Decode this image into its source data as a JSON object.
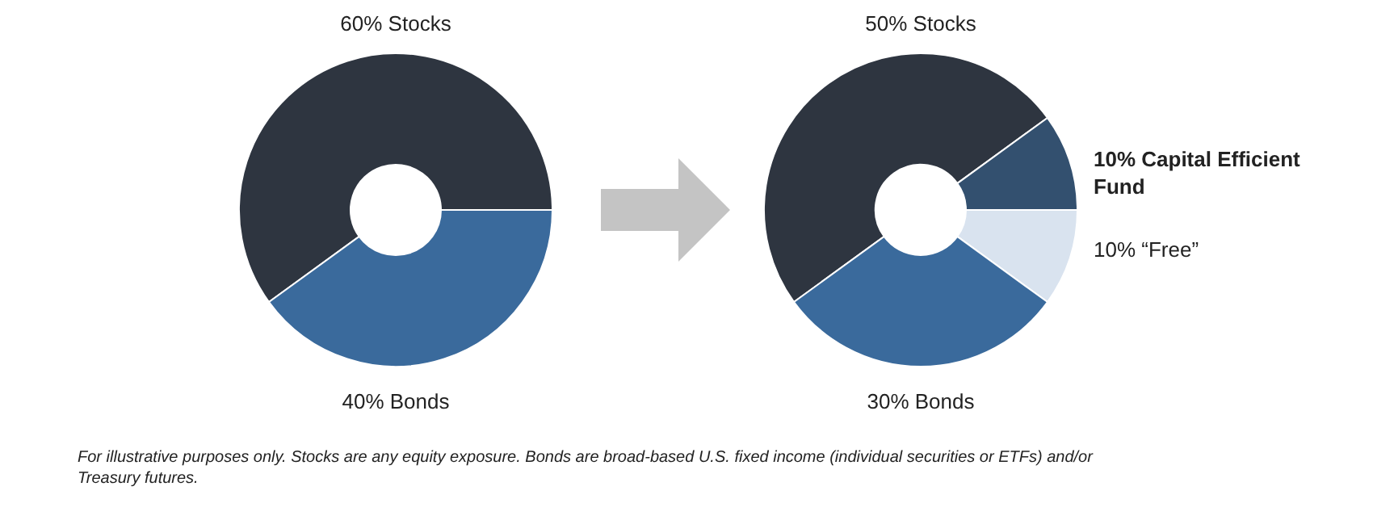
{
  "chart_data": [
    {
      "type": "donut",
      "categories": [
        "60% Stocks",
        "40% Bonds"
      ],
      "values": [
        60,
        40
      ],
      "colors": [
        "#2e3540",
        "#3a6a9c"
      ],
      "annotations": [
        "For illustrative purposes only. Stocks are any equity exposure.  Bonds are broad-based U.S. fixed income (individual securities or ETFs) and/or Treasury futures."
      ]
    },
    {
      "type": "donut",
      "categories": [
        "50% Stocks",
        "10% Capital Efficient Fund",
        "10% “Free”",
        "30% Bonds"
      ],
      "values": [
        50,
        10,
        10,
        30
      ],
      "colors": [
        "#2e3540",
        "#33506f",
        "#d9e3ef",
        "#3a6a9c"
      ]
    }
  ]
}
